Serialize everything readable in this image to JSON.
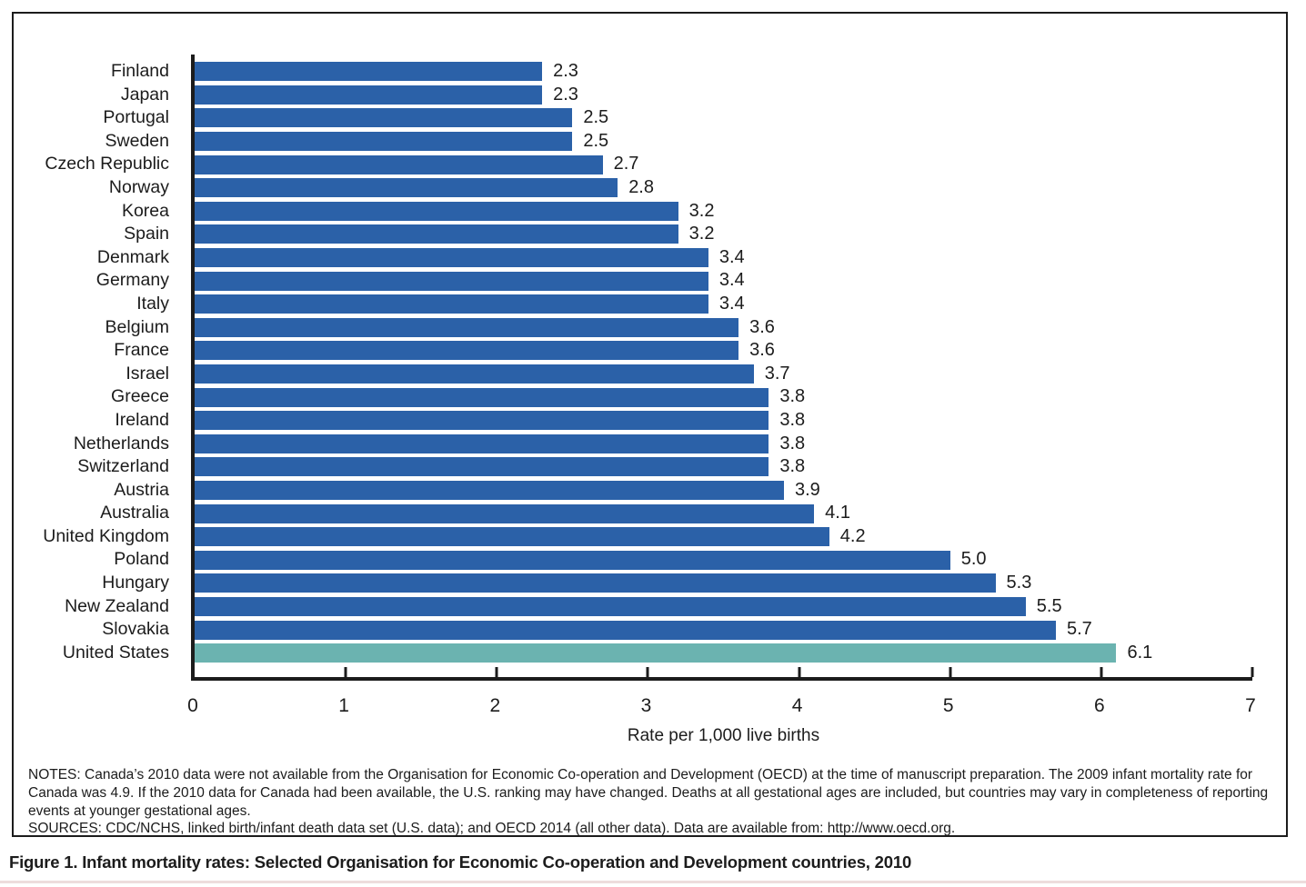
{
  "figure": {
    "caption": "Figure 1. Infant mortality rates: Selected Organisation for Economic Co-operation and Development countries, 2010",
    "notes": "NOTES: Canada’s 2010 data were not available from the Organisation for Economic Co-operation and Development (OECD) at the time of manuscript preparation. The 2009 infant mortality rate for Canada was 4.9. If the 2010 data for Canada had been available, the U.S. ranking may have changed. Deaths at all gestational ages are included, but countries may vary in completeness of reporting events at younger gestational ages.",
    "sources": "SOURCES: CDC/NCHS, linked birth/infant death data set (U.S. data); and OECD 2014 (all other data). Data are available from: http://www.oecd.org."
  },
  "chart_data": {
    "type": "bar",
    "orientation": "horizontal",
    "title": "",
    "xlabel": "Rate per 1,000 live births",
    "xlim": [
      0,
      7
    ],
    "xticks": [
      0,
      1,
      2,
      3,
      4,
      5,
      6,
      7
    ],
    "grid": false,
    "value_decimals": 1,
    "categories": [
      "Finland",
      "Japan",
      "Portugal",
      "Sweden",
      "Czech Republic",
      "Norway",
      "Korea",
      "Spain",
      "Denmark",
      "Germany",
      "Italy",
      "Belgium",
      "France",
      "Israel",
      "Greece",
      "Ireland",
      "Netherlands",
      "Switzerland",
      "Austria",
      "Australia",
      "United Kingdom",
      "Poland",
      "Hungary",
      "New Zealand",
      "Slovakia",
      "United States"
    ],
    "values": [
      2.3,
      2.3,
      2.5,
      2.5,
      2.7,
      2.8,
      3.2,
      3.2,
      3.4,
      3.4,
      3.4,
      3.6,
      3.6,
      3.7,
      3.8,
      3.8,
      3.8,
      3.8,
      3.9,
      4.1,
      4.2,
      5.0,
      5.3,
      5.5,
      5.7,
      6.1
    ],
    "highlight_category": "United States",
    "colors": {
      "bar": "#2B61A8",
      "highlight": "#6BB3B0",
      "axis": "#1C1C1C",
      "text": "#1C1C1C"
    }
  }
}
